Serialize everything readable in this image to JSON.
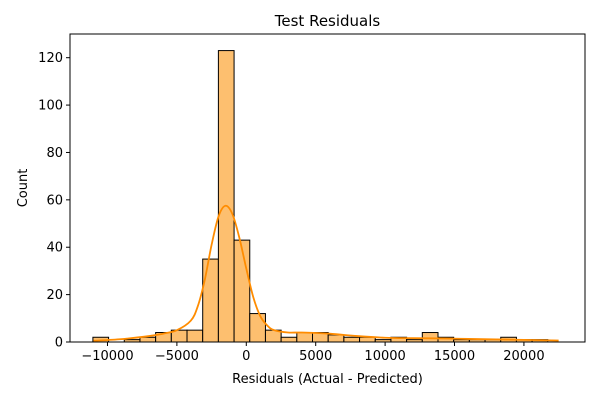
{
  "chart_data": {
    "type": "bar",
    "title": "Test Residuals",
    "xlabel": "Residuals (Actual - Predicted)",
    "ylabel": "Count",
    "xlim": [
      -12700,
      24400
    ],
    "ylim": [
      0,
      130
    ],
    "xticks": [
      -10000,
      -5000,
      0,
      5000,
      10000,
      15000,
      20000
    ],
    "xtick_labels": [
      "−10000",
      "−5000",
      "0",
      "5000",
      "10000",
      "15000",
      "20000"
    ],
    "yticks": [
      0,
      20,
      40,
      60,
      80,
      100,
      120
    ],
    "ytick_labels": [
      "0",
      "20",
      "40",
      "60",
      "80",
      "100",
      "120"
    ],
    "bins": {
      "start": -11050,
      "width": 1130,
      "counts": [
        2,
        0,
        1,
        2,
        4,
        5,
        5,
        35,
        123,
        43,
        12,
        5,
        2,
        4,
        4,
        3,
        2,
        2,
        1,
        2,
        1,
        4,
        2,
        1,
        1,
        1,
        2,
        1,
        1
      ]
    },
    "kde": {
      "x": [
        -11000,
        -9000,
        -7000,
        -6000,
        -5000,
        -4000,
        -3500,
        -3000,
        -2500,
        -2000,
        -1500,
        -1000,
        -500,
        0,
        500,
        1000,
        1500,
        2000,
        3000,
        4000,
        6000,
        8000,
        10000,
        12000,
        14000,
        16000,
        18000,
        20000,
        22500
      ],
      "y": [
        0.5,
        1.2,
        2.5,
        3.5,
        5,
        9,
        15,
        26,
        41,
        53,
        57.5,
        54,
        44,
        31,
        19,
        11,
        7,
        5,
        4,
        4,
        3.5,
        2.5,
        1.8,
        1.6,
        1.5,
        1.3,
        1.1,
        0.9,
        0.6
      ]
    },
    "bar_fill": "#fdbf6f",
    "bar_edge": "#000000",
    "kde_color": "#ff8c00",
    "grid": false,
    "legend": "none"
  }
}
